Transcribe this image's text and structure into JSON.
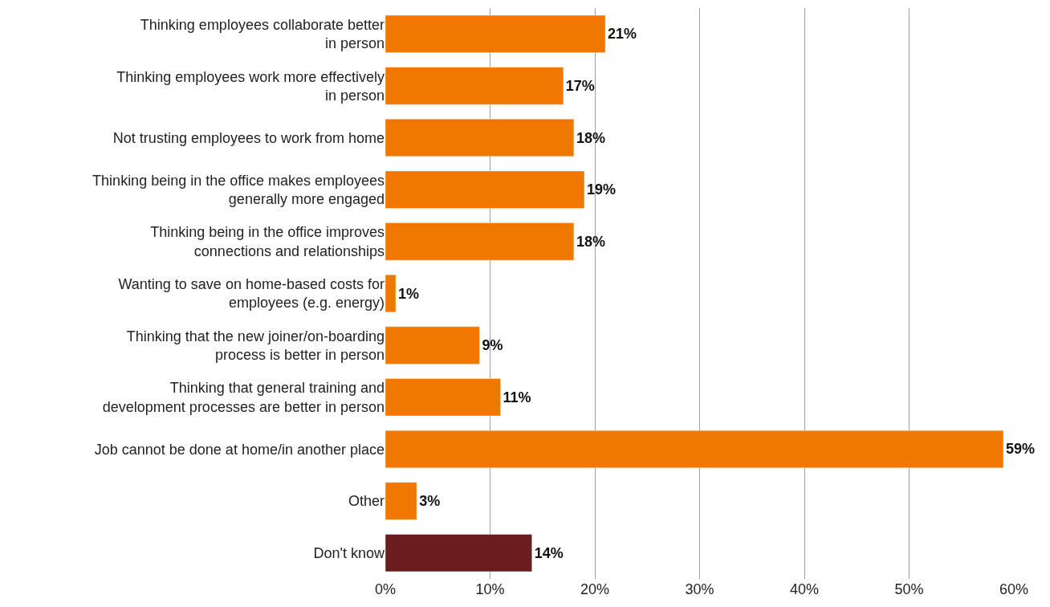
{
  "chart_data": {
    "type": "bar",
    "orientation": "horizontal",
    "categories": [
      "Thinking employees collaborate better\nin person",
      "Thinking employees work more effectively\nin person",
      "Not trusting employees to work from home",
      "Thinking being in the office makes employees\ngenerally more engaged",
      "Thinking being in the office improves\nconnections and relationships",
      "Wanting to save on home-based costs for\nemployees (e.g. energy)",
      "Thinking that the new joiner/on-boarding\nprocess is better in person",
      "Thinking that general training and\ndevelopment processes are better in person",
      "Job cannot be done at home/in another place",
      "Other",
      "Don't know"
    ],
    "values": [
      21,
      17,
      18,
      19,
      18,
      1,
      9,
      11,
      59,
      3,
      14
    ],
    "value_labels": [
      "21%",
      "17%",
      "18%",
      "19%",
      "18%",
      "1%",
      "9%",
      "11%",
      "59%",
      "3%",
      "14%"
    ],
    "colors": [
      "#f07800",
      "#f07800",
      "#f07800",
      "#f07800",
      "#f07800",
      "#f07800",
      "#f07800",
      "#f07800",
      "#f07800",
      "#f07800",
      "#6b1c1f"
    ],
    "xlim": [
      0,
      60
    ],
    "xticks": [
      {
        "value": 0,
        "label": "0%"
      },
      {
        "value": 10,
        "label": "10%"
      },
      {
        "value": 20,
        "label": "20%"
      },
      {
        "value": 30,
        "label": "30%"
      },
      {
        "value": 40,
        "label": "40%"
      },
      {
        "value": 50,
        "label": "50%"
      },
      {
        "value": 60,
        "label": "60%"
      }
    ],
    "grid": "x"
  }
}
